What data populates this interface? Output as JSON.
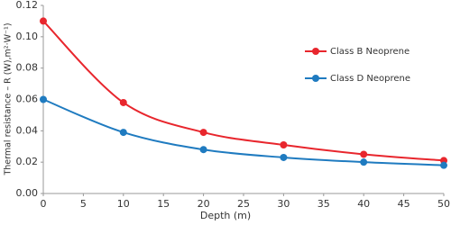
{
  "chart_data": {
    "type": "line",
    "x_label": "Depth (m)",
    "y_label": "Thermal resistance – R (W),m²·W⁻¹)",
    "x": [
      0,
      10,
      20,
      30,
      40,
      50
    ],
    "series": [
      {
        "name": "Class B Neoprene",
        "color": "#e8262d",
        "values": [
          0.11,
          0.058,
          0.039,
          0.031,
          0.025,
          0.021
        ]
      },
      {
        "name": "Class D Neoprene",
        "color": "#1f7bc0",
        "values": [
          0.06,
          0.039,
          0.028,
          0.023,
          0.02,
          0.018
        ]
      }
    ],
    "xlim": [
      0,
      50
    ],
    "xticks": [
      0,
      5,
      10,
      15,
      20,
      25,
      30,
      35,
      40,
      45,
      50
    ],
    "ylim": [
      0,
      0.12
    ],
    "yticks": [
      {
        "value": 0,
        "label": "0.00"
      },
      {
        "value": 0.02,
        "label": "0.02"
      },
      {
        "value": 0.04,
        "label": "0.04"
      },
      {
        "value": 0.06,
        "label": "0.06"
      },
      {
        "value": 0.08,
        "label": "0.08"
      },
      {
        "value": 0.1,
        "label": "0.10"
      },
      {
        "value": 0.12,
        "label": "0.12"
      }
    ],
    "grid": false,
    "smooth": true
  }
}
